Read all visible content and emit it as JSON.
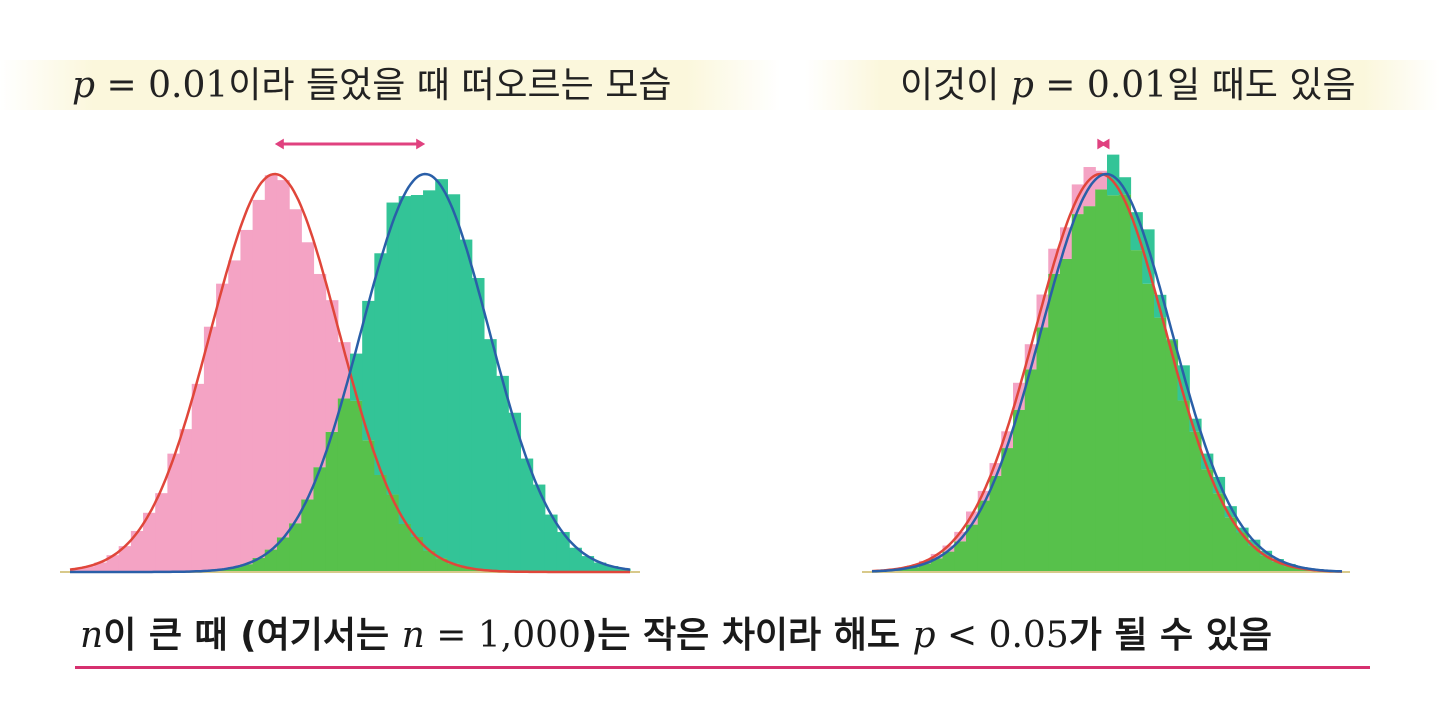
{
  "titles": {
    "left": {
      "p_symbol": "p",
      "eq": " = 0.01",
      "rest": "이라 들었을 때 떠오르는 모습"
    },
    "right": {
      "pre": "이것이 ",
      "p_symbol": "p",
      "eq": " = 0.01",
      "rest": "일 때도 있음"
    }
  },
  "caption": {
    "n1": "n",
    "part1": "이 큰 때 (여기서는 ",
    "n2": "n",
    "nval": " = 1,000",
    "part2": ")는 작은 차이라 해도 ",
    "p": "p",
    "pval": " < 0.05",
    "part3": "가 될 수 있음"
  },
  "colors": {
    "pink_hist": "#f4a3c4",
    "teal_hist": "#33c497",
    "overlap": "#57c14b",
    "red_curve": "#e0463a",
    "blue_curve": "#2a5fa8",
    "arrow": "#e0417f",
    "underline": "#d6306f"
  },
  "chart_data": [
    {
      "type": "area",
      "panel": "left",
      "series": [
        {
          "mean": 0.0,
          "sd": 1.0
        },
        {
          "mean": 2.35,
          "sd": 1.0
        }
      ]
    },
    {
      "type": "area",
      "panel": "right",
      "series": [
        {
          "mean": 0.0,
          "sd": 1.0
        },
        {
          "mean": 0.09,
          "sd": 1.0
        }
      ]
    }
  ]
}
